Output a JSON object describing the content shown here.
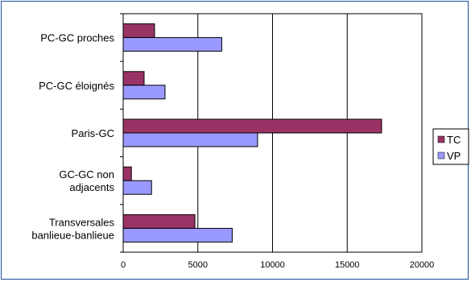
{
  "chart_data": {
    "type": "bar",
    "orientation": "horizontal",
    "categories": [
      [
        "PC-GC proches"
      ],
      [
        "PC-GC éloignés"
      ],
      [
        "Paris-GC"
      ],
      [
        "GC-GC non",
        "adjacents"
      ],
      [
        "Transversales",
        "banlieue-banlieue"
      ]
    ],
    "series": [
      {
        "name": "TC",
        "color": "#993366",
        "values": [
          2100,
          1400,
          17300,
          550,
          4800
        ]
      },
      {
        "name": "VP",
        "color": "#9999ff",
        "values": [
          6600,
          2800,
          9000,
          1900,
          7300
        ]
      }
    ],
    "xlim": [
      0,
      20000
    ],
    "xticks": [
      0,
      5000,
      10000,
      15000,
      20000
    ],
    "grid": true,
    "legend_position": "right"
  }
}
